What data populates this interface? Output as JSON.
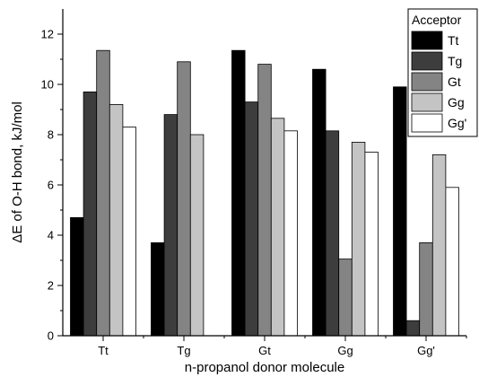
{
  "chart_data": {
    "type": "bar",
    "title": "",
    "xlabel": "n-propanol donor molecule",
    "ylabel": "ΔE of O-H bond, kJ/mol",
    "ylim": [
      0,
      13
    ],
    "yticks": [
      0,
      2,
      4,
      6,
      8,
      10,
      12
    ],
    "grid": false,
    "legend_placement": "top-right",
    "legend_title": "Acceptor",
    "categories": [
      "Tt",
      "Tg",
      "Gt",
      "Gg",
      "Gg'"
    ],
    "series": [
      {
        "name": "Tt",
        "color": "#000000",
        "values": [
          4.7,
          3.7,
          11.35,
          10.6,
          9.9
        ]
      },
      {
        "name": "Tg",
        "color": "#3d3d3d",
        "values": [
          9.7,
          8.8,
          9.3,
          8.15,
          0.6
        ]
      },
      {
        "name": "Gt",
        "color": "#848484",
        "values": [
          11.35,
          10.9,
          10.8,
          3.05,
          3.7
        ]
      },
      {
        "name": "Gg",
        "color": "#c4c4c4",
        "values": [
          9.2,
          8.0,
          8.65,
          7.7,
          7.2
        ]
      },
      {
        "name": "Gg'",
        "color": "#ffffff",
        "values": [
          8.3,
          null,
          8.15,
          7.3,
          5.9
        ]
      }
    ]
  }
}
